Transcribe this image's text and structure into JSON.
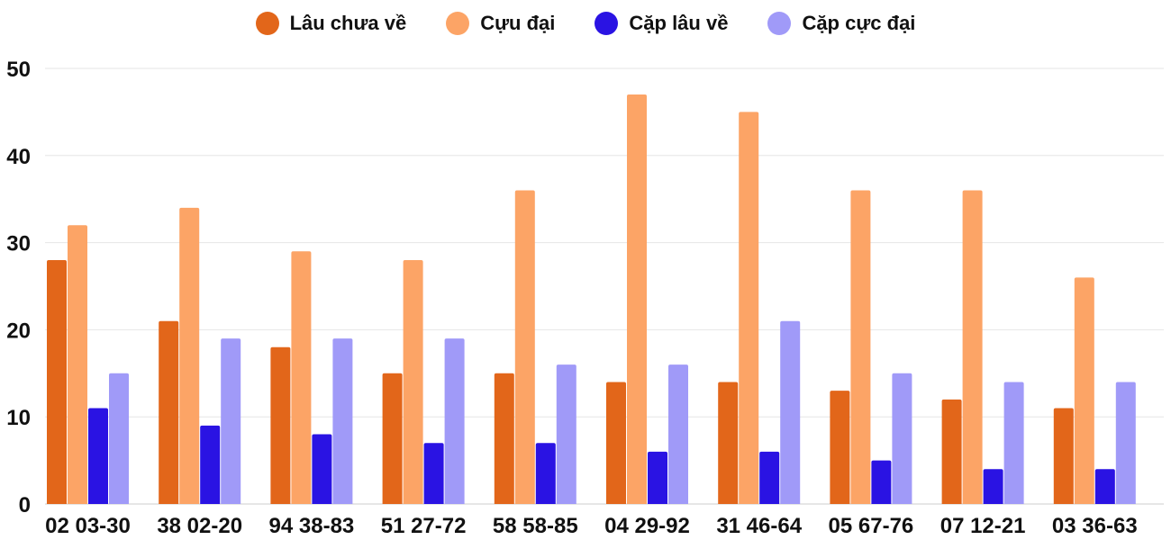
{
  "chart_data": {
    "type": "bar",
    "title": "",
    "xlabel": "",
    "ylabel": "",
    "ylim": [
      0,
      50
    ],
    "yticks": [
      0,
      10,
      20,
      30,
      40,
      50
    ],
    "grid": true,
    "legend_position": "top-center",
    "categories": [
      "02 03-30",
      "38 02-20",
      "94 38-83",
      "51 27-72",
      "58 58-85",
      "04 29-92",
      "31 46-64",
      "05 67-76",
      "07 12-21",
      "03 36-63"
    ],
    "series": [
      {
        "name": "Lâu chưa về",
        "color": "#e2661a",
        "values": [
          28,
          21,
          18,
          15,
          15,
          14,
          14,
          13,
          12,
          11
        ]
      },
      {
        "name": "Cựu đại",
        "color": "#fca466",
        "values": [
          32,
          34,
          29,
          28,
          36,
          47,
          45,
          36,
          36,
          26
        ]
      },
      {
        "name": "Cặp lâu về",
        "color": "#2a13e3",
        "values": [
          11,
          9,
          8,
          7,
          7,
          6,
          6,
          5,
          4,
          4
        ]
      },
      {
        "name": "Cặp cực đại",
        "color": "#a09af8",
        "values": [
          15,
          19,
          19,
          19,
          16,
          16,
          21,
          15,
          14,
          14
        ]
      }
    ]
  }
}
